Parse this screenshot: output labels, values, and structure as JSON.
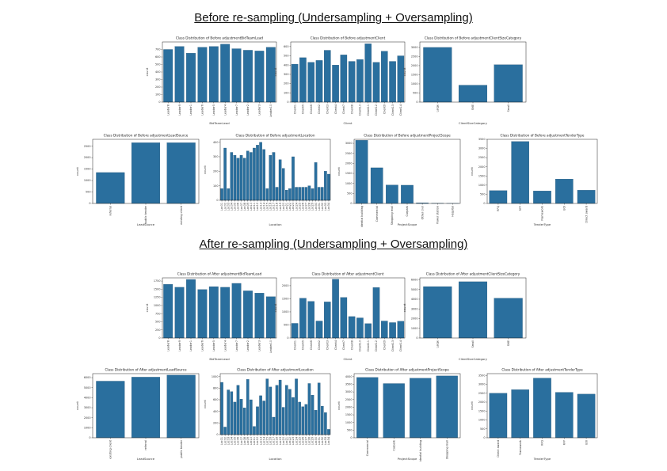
{
  "page": {
    "before_heading": "Before re-sampling (Undersampling + Oversampling)",
    "after_heading": "After re-sampling (Undersampling + Oversampling)"
  },
  "colors": {
    "bar": "#2a6f9e",
    "bar_edge": "#1d4f72",
    "axis": "#222222"
  },
  "chart_data": [
    {
      "id": "before-bidteamlead",
      "type": "bar",
      "title": "Class Distribution of Before adjustmentBidTeamLead",
      "xlabel": "BidTeamLead",
      "ylabel": "count",
      "ylim": [
        0,
        800
      ],
      "yticks": [
        0,
        100,
        200,
        300,
        400,
        500,
        600,
        700
      ],
      "categories": [
        "Leader8",
        "Leader9",
        "Leader1",
        "Leader6",
        "Leader5",
        "Leader4",
        "Leader7",
        "Leader2",
        "Leader3",
        "Leader10"
      ],
      "values": [
        700,
        740,
        650,
        730,
        740,
        770,
        710,
        690,
        680,
        730
      ]
    },
    {
      "id": "before-client",
      "type": "bar",
      "title": "Class Distribution of Before adjustmentClient",
      "xlabel": "Client",
      "ylabel": "count",
      "ylim": [
        0,
        650
      ],
      "yticks": [
        0,
        100,
        200,
        300,
        400,
        500,
        600
      ],
      "categories": [
        "Client1",
        "Client5",
        "Client6",
        "Client2",
        "Client3",
        "Client4",
        "Client7",
        "Client8",
        "Client10",
        "Client11",
        "Client12",
        "Client9",
        "Client13",
        "Client14"
      ],
      "values": [
        410,
        480,
        430,
        450,
        560,
        400,
        510,
        440,
        460,
        630,
        430,
        550,
        440,
        500
      ]
    },
    {
      "id": "before-clientsizecategory",
      "type": "bar",
      "title": "Class Distribution of Before adjustmentClientSizeCategory",
      "xlabel": "ClientSizeCategory",
      "ylabel": "count",
      "ylim": [
        0,
        3300
      ],
      "yticks": [
        0,
        500,
        1000,
        1500,
        2000,
        2500,
        3000
      ],
      "categories": [
        "Large",
        "SME",
        "Small"
      ],
      "values": [
        3000,
        930,
        2050
      ]
    },
    {
      "id": "before-leadsource",
      "type": "bar",
      "title": "Class Distribution of Before adjustmentLeadSource",
      "xlabel": "LeadSource",
      "ylabel": "count",
      "ylim": [
        0,
        2800
      ],
      "yticks": [
        0,
        500,
        1000,
        1500,
        2000,
        2500
      ],
      "categories": [
        "referral",
        "public tender",
        "existing client"
      ],
      "values": [
        1350,
        2650,
        2650
      ]
    },
    {
      "id": "before-location",
      "type": "bar",
      "title": "Class Distribution of Before adjustmentLocation",
      "xlabel": "Location",
      "ylabel": "count",
      "ylim": [
        0,
        420
      ],
      "yticks": [
        0,
        100,
        200,
        300,
        400
      ],
      "categories": [
        "Loc01",
        "Loc02",
        "Loc03",
        "Loc04",
        "Loc05",
        "Loc06",
        "Loc07",
        "Loc08",
        "Loc09",
        "Loc10",
        "Loc11",
        "Loc12",
        "Loc13",
        "Loc14",
        "Loc15",
        "Loc16",
        "Loc17",
        "Loc18",
        "Loc19",
        "Loc20",
        "Loc21",
        "Loc22",
        "Loc23",
        "Loc24",
        "Loc25",
        "Loc26",
        "Loc27",
        "Loc28",
        "Loc29",
        "Loc30",
        "Loc31",
        "Loc32",
        "Loc33",
        "Loc34"
      ],
      "values": [
        80,
        360,
        80,
        330,
        310,
        290,
        310,
        290,
        340,
        330,
        360,
        380,
        400,
        350,
        80,
        310,
        330,
        90,
        280,
        220,
        70,
        80,
        300,
        90,
        90,
        90,
        90,
        100,
        80,
        260,
        90,
        90,
        200,
        180
      ]
    },
    {
      "id": "before-projectscope",
      "type": "bar",
      "title": "Class Distribution of Before adjustmentProjectScope",
      "xlabel": "ProjectScope",
      "ylabel": "count",
      "ylim": [
        0,
        3200
      ],
      "yticks": [
        0,
        500,
        1000,
        1500,
        2000,
        2500,
        3000
      ],
      "categories": [
        "Residential building",
        "Commercial",
        "Shopping mall",
        "Carpark",
        "Other civil",
        "Power station",
        "Hospital"
      ],
      "values": [
        3150,
        1780,
        920,
        910,
        30,
        10,
        5
      ]
    },
    {
      "id": "before-tendertype",
      "type": "bar",
      "title": "Class Distribution of Before adjustmentTenderType",
      "xlabel": "TenderType",
      "ylabel": "count",
      "ylim": [
        0,
        3500
      ],
      "yticks": [
        0,
        500,
        1000,
        1500,
        2000,
        2500,
        3000,
        3500
      ],
      "categories": [
        "RFQ",
        "RFP",
        "Framework",
        "EOI",
        "Direct award"
      ],
      "values": [
        700,
        3380,
        680,
        1330,
        720
      ]
    },
    {
      "id": "after-bidteamlead",
      "type": "bar",
      "title": "Class Distribution of After adjustmentBidTeamLead",
      "xlabel": "BidTeamLead",
      "ylabel": "count",
      "ylim": [
        0,
        1850
      ],
      "yticks": [
        0,
        250,
        500,
        750,
        1000,
        1250,
        1500,
        1750
      ],
      "categories": [
        "Leader8",
        "Leader9",
        "Leader1",
        "Leader6",
        "Leader5",
        "Leader4",
        "Leader7",
        "Leader2",
        "Leader3",
        "Leader10"
      ],
      "values": [
        1650,
        1560,
        1800,
        1490,
        1580,
        1560,
        1680,
        1450,
        1380,
        1270
      ]
    },
    {
      "id": "after-client",
      "type": "bar",
      "title": "Class Distribution of After adjustmentClient",
      "xlabel": "Client",
      "ylabel": "count",
      "ylim": [
        0,
        2300
      ],
      "yticks": [
        0,
        500,
        1000,
        1500,
        2000
      ],
      "categories": [
        "Client1",
        "Client5",
        "Client6",
        "Client2",
        "Client3",
        "Client4",
        "Client7",
        "Client8",
        "Client10",
        "Client11",
        "Client12",
        "Client9",
        "Client13",
        "Client14"
      ],
      "values": [
        560,
        1520,
        1400,
        650,
        1380,
        2250,
        1550,
        820,
        770,
        550,
        1930,
        650,
        590,
        640
      ]
    },
    {
      "id": "after-clientsizecategory",
      "type": "bar",
      "title": "Class Distribution of After adjustmentClientSizeCategory",
      "xlabel": "ClientSizeCategory",
      "ylabel": "count",
      "ylim": [
        0,
        6200
      ],
      "yticks": [
        0,
        1000,
        2000,
        3000,
        4000,
        5000,
        6000
      ],
      "categories": [
        "Large",
        "Small",
        "SME"
      ],
      "values": [
        5300,
        5800,
        4100
      ]
    },
    {
      "id": "after-leadsource",
      "type": "bar",
      "title": "Class Distribution of After adjustmentLeadSource",
      "xlabel": "LeadSource",
      "ylabel": "count",
      "ylim": [
        0,
        6400
      ],
      "yticks": [
        0,
        1000,
        2000,
        3000,
        4000,
        5000,
        6000
      ],
      "categories": [
        "existing client",
        "referral",
        "public tender"
      ],
      "values": [
        5650,
        6050,
        6250
      ]
    },
    {
      "id": "after-location",
      "type": "bar",
      "title": "Class Distribution of After adjustmentLocation",
      "xlabel": "Location",
      "ylabel": "count",
      "ylim": [
        0,
        1050
      ],
      "yticks": [
        0,
        200,
        400,
        600,
        800,
        1000
      ],
      "categories": [
        "Loc01",
        "Loc02",
        "Loc03",
        "Loc04",
        "Loc05",
        "Loc06",
        "Loc07",
        "Loc08",
        "Loc09",
        "Loc10",
        "Loc11",
        "Loc12",
        "Loc13",
        "Loc14",
        "Loc15",
        "Loc16",
        "Loc17",
        "Loc18",
        "Loc19",
        "Loc20",
        "Loc21",
        "Loc22",
        "Loc23",
        "Loc24",
        "Loc25",
        "Loc26",
        "Loc27",
        "Loc28",
        "Loc29",
        "Loc30",
        "Loc31",
        "Loc32",
        "Loc33",
        "Loc34"
      ],
      "values": [
        900,
        130,
        770,
        740,
        560,
        850,
        610,
        460,
        950,
        600,
        140,
        480,
        670,
        580,
        960,
        820,
        300,
        850,
        940,
        470,
        850,
        780,
        640,
        960,
        560,
        480,
        520,
        880,
        680,
        420,
        890,
        490,
        380,
        90
      ]
    },
    {
      "id": "after-projectscope",
      "type": "bar",
      "title": "Class Distribution of After adjustmentProjectScope",
      "xlabel": "ProjectScope",
      "ylabel": "count",
      "ylim": [
        0,
        4200
      ],
      "yticks": [
        0,
        500,
        1000,
        1500,
        2000,
        2500,
        3000,
        3500,
        4000
      ],
      "categories": [
        "Commercial",
        "Carpark",
        "Residential building",
        "Shopping mall"
      ],
      "values": [
        3950,
        3550,
        3900,
        4050
      ]
    },
    {
      "id": "after-tendertype",
      "type": "bar",
      "title": "Class Distribution of After adjustmentTenderType",
      "xlabel": "TenderType",
      "ylabel": "count",
      "ylim": [
        0,
        3600
      ],
      "yticks": [
        0,
        500,
        1000,
        1500,
        2000,
        2500,
        3000,
        3500
      ],
      "categories": [
        "Direct award",
        "Framework",
        "RFQ",
        "RFP",
        "EOI"
      ],
      "values": [
        2500,
        2700,
        3350,
        2550,
        2450
      ]
    }
  ]
}
